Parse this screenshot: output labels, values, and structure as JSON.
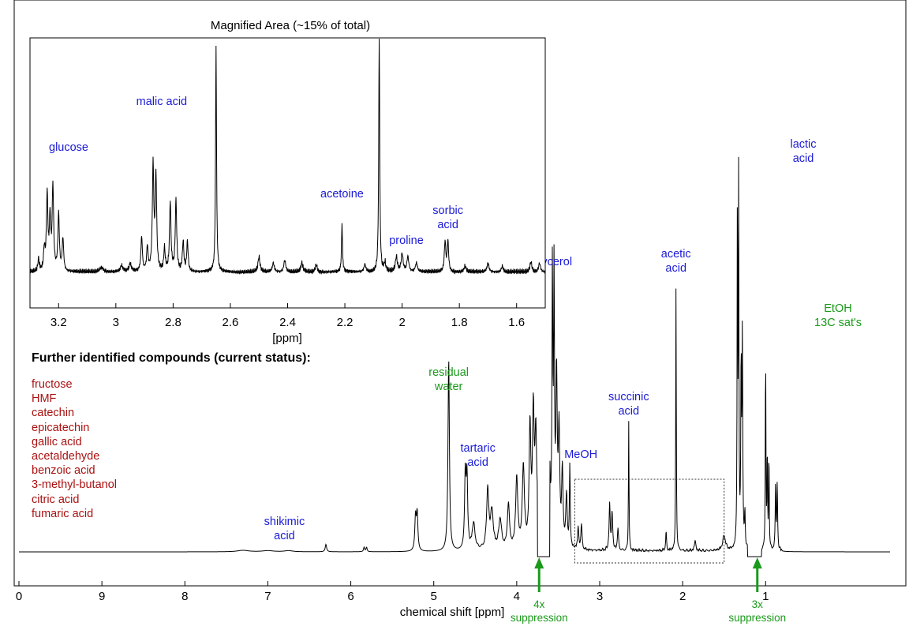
{
  "chart_data": [
    {
      "type": "line",
      "subtype": "nmr-spectrum",
      "xlabel": "chemical shift [ppm]",
      "ylabel": "",
      "xlim": [
        10.0,
        -0.5
      ],
      "x_reversed": true,
      "x_ticks": [
        "0",
        "9",
        "8",
        "7",
        "6",
        "5",
        "4",
        "3",
        "2",
        "1"
      ],
      "grid": false,
      "peaks": [
        {
          "ppm": 7.3,
          "height": 0.004,
          "width": 0.08
        },
        {
          "ppm": 7.0,
          "height": 0.003,
          "width": 0.08
        },
        {
          "ppm": 6.75,
          "height": 0.003,
          "width": 0.06
        },
        {
          "ppm": 6.3,
          "height": 0.02,
          "width": 0.01
        },
        {
          "ppm": 5.84,
          "height": 0.012,
          "width": 0.008
        },
        {
          "ppm": 5.81,
          "height": 0.012,
          "width": 0.008
        },
        {
          "ppm": 5.2,
          "height": 0.1,
          "width": 0.01
        },
        {
          "ppm": 5.22,
          "height": 0.09,
          "width": 0.01
        },
        {
          "ppm": 4.82,
          "height": 0.52,
          "width": 0.01
        },
        {
          "ppm": 4.62,
          "height": 0.2,
          "width": 0.01
        },
        {
          "ppm": 4.6,
          "height": 0.19,
          "width": 0.01
        },
        {
          "ppm": 4.52,
          "height": 0.07,
          "width": 0.02
        },
        {
          "ppm": 4.35,
          "height": 0.16,
          "width": 0.015
        },
        {
          "ppm": 4.3,
          "height": 0.1,
          "width": 0.02
        },
        {
          "ppm": 4.2,
          "height": 0.08,
          "width": 0.02
        },
        {
          "ppm": 4.1,
          "height": 0.12,
          "width": 0.015
        },
        {
          "ppm": 4.0,
          "height": 0.19,
          "width": 0.015
        },
        {
          "ppm": 3.92,
          "height": 0.22,
          "width": 0.015
        },
        {
          "ppm": 3.84,
          "height": 0.32,
          "width": 0.012
        },
        {
          "ppm": 3.8,
          "height": 0.35,
          "width": 0.012
        },
        {
          "ppm": 3.77,
          "height": 0.28,
          "width": 0.012
        },
        {
          "ppm": 3.73,
          "height": 0.53,
          "width": 0.008
        },
        {
          "ppm": 3.61,
          "height": 0.34,
          "width": 0.012
        },
        {
          "ppm": 3.57,
          "height": 0.72,
          "width": 0.006
        },
        {
          "ppm": 3.55,
          "height": 0.7,
          "width": 0.006
        },
        {
          "ppm": 3.52,
          "height": 0.45,
          "width": 0.01
        },
        {
          "ppm": 3.49,
          "height": 0.3,
          "width": 0.01
        },
        {
          "ppm": 3.45,
          "height": 0.2,
          "width": 0.01
        },
        {
          "ppm": 3.4,
          "height": 0.14,
          "width": 0.01
        },
        {
          "ppm": 3.36,
          "height": 0.22,
          "width": 0.006
        },
        {
          "ppm": 3.26,
          "height": 0.06,
          "width": 0.008
        },
        {
          "ppm": 3.22,
          "height": 0.07,
          "width": 0.008
        },
        {
          "ppm": 2.88,
          "height": 0.12,
          "width": 0.008
        },
        {
          "ppm": 2.85,
          "height": 0.1,
          "width": 0.008
        },
        {
          "ppm": 2.78,
          "height": 0.06,
          "width": 0.008
        },
        {
          "ppm": 2.65,
          "height": 0.35,
          "width": 0.004
        },
        {
          "ppm": 2.2,
          "height": 0.05,
          "width": 0.006
        },
        {
          "ppm": 2.08,
          "height": 0.72,
          "width": 0.004
        },
        {
          "ppm": 1.85,
          "height": 0.03,
          "width": 0.008
        },
        {
          "ppm": 1.5,
          "height": 0.04,
          "width": 0.02
        },
        {
          "ppm": 1.34,
          "height": 0.99,
          "width": 0.004
        },
        {
          "ppm": 1.325,
          "height": 0.98,
          "width": 0.004
        },
        {
          "ppm": 1.295,
          "height": 0.5,
          "width": 0.005
        },
        {
          "ppm": 1.28,
          "height": 0.57,
          "width": 0.005
        },
        {
          "ppm": 1.25,
          "height": 0.1,
          "width": 0.005
        },
        {
          "ppm": 1.0,
          "height": 0.55,
          "width": 0.004
        },
        {
          "ppm": 0.98,
          "height": 0.27,
          "width": 0.004
        },
        {
          "ppm": 0.96,
          "height": 0.27,
          "width": 0.004
        },
        {
          "ppm": 0.88,
          "height": 0.18,
          "width": 0.005
        },
        {
          "ppm": 0.86,
          "height": 0.18,
          "width": 0.005
        }
      ],
      "suppressed_regions": [
        [
          3.75,
          3.6
        ],
        [
          1.22,
          1.05
        ]
      ],
      "annotations": [
        {
          "text": "shikimic\nacid",
          "ppm": 6.8,
          "color": "#1a1ad6"
        },
        {
          "text": "residual\nwater",
          "ppm": 4.82,
          "color": "#1a9a1a"
        },
        {
          "text": "tartaric\nacid",
          "ppm": 4.62,
          "color": "#1a1ad6"
        },
        {
          "text": "glycerol",
          "ppm": 3.57,
          "color": "#1a1ad6"
        },
        {
          "text": "MeOH",
          "ppm": 3.36,
          "color": "#1a1ad6"
        },
        {
          "text": "succinic\nacid",
          "ppm": 2.65,
          "color": "#1a1ad6"
        },
        {
          "text": "acetic\nacid",
          "ppm": 2.08,
          "color": "#1a1ad6"
        },
        {
          "text": "lactic\nacid",
          "ppm": 1.32,
          "color": "#1a1ad6"
        },
        {
          "text": "EtOH\n13C sat's",
          "ppm": 1.02,
          "color": "#1a9a1a"
        }
      ],
      "suppression_markers": [
        {
          "label": "4x\nsuppression",
          "ppm": 3.73,
          "color": "#1a9a1a"
        },
        {
          "label": "3x\nsuppression",
          "ppm": 1.1,
          "color": "#1a9a1a"
        }
      ],
      "magnified_region": [
        3.3,
        1.5
      ]
    },
    {
      "type": "line",
      "subtype": "nmr-spectrum-inset",
      "title": "Magnified Area (~15% of total)",
      "xlabel": "[ppm]",
      "xlim": [
        3.3,
        1.5
      ],
      "x_reversed": true,
      "x_ticks": [
        "3.2",
        "3",
        "2.8",
        "2.6",
        "2.4",
        "2.2",
        "2",
        "1.8",
        "1.6"
      ],
      "peaks": [
        {
          "ppm": 3.27,
          "height": 0.08,
          "width": 0.003
        },
        {
          "ppm": 3.25,
          "height": 0.14,
          "width": 0.003
        },
        {
          "ppm": 3.24,
          "height": 0.5,
          "width": 0.003
        },
        {
          "ppm": 3.23,
          "height": 0.33,
          "width": 0.003
        },
        {
          "ppm": 3.22,
          "height": 0.56,
          "width": 0.003
        },
        {
          "ppm": 3.2,
          "height": 0.38,
          "width": 0.003
        },
        {
          "ppm": 3.185,
          "height": 0.22,
          "width": 0.003
        },
        {
          "ppm": 3.05,
          "height": 0.03,
          "width": 0.008
        },
        {
          "ppm": 2.98,
          "height": 0.04,
          "width": 0.005
        },
        {
          "ppm": 2.95,
          "height": 0.05,
          "width": 0.005
        },
        {
          "ppm": 2.91,
          "height": 0.23,
          "width": 0.003
        },
        {
          "ppm": 2.89,
          "height": 0.16,
          "width": 0.003
        },
        {
          "ppm": 2.87,
          "height": 0.7,
          "width": 0.003
        },
        {
          "ppm": 2.86,
          "height": 0.63,
          "width": 0.003
        },
        {
          "ppm": 2.83,
          "height": 0.15,
          "width": 0.003
        },
        {
          "ppm": 2.81,
          "height": 0.46,
          "width": 0.003
        },
        {
          "ppm": 2.79,
          "height": 0.47,
          "width": 0.003
        },
        {
          "ppm": 2.765,
          "height": 0.2,
          "width": 0.003
        },
        {
          "ppm": 2.75,
          "height": 0.2,
          "width": 0.003
        },
        {
          "ppm": 2.65,
          "height": 1.5,
          "width": 0.002
        },
        {
          "ppm": 2.5,
          "height": 0.1,
          "width": 0.004
        },
        {
          "ppm": 2.45,
          "height": 0.06,
          "width": 0.004
        },
        {
          "ppm": 2.41,
          "height": 0.08,
          "width": 0.004
        },
        {
          "ppm": 2.35,
          "height": 0.06,
          "width": 0.004
        },
        {
          "ppm": 2.3,
          "height": 0.05,
          "width": 0.004
        },
        {
          "ppm": 2.21,
          "height": 0.32,
          "width": 0.002
        },
        {
          "ppm": 2.13,
          "height": 0.05,
          "width": 0.004
        },
        {
          "ppm": 2.08,
          "height": 1.6,
          "width": 0.002
        },
        {
          "ppm": 2.06,
          "height": 0.06,
          "width": 0.003
        },
        {
          "ppm": 2.02,
          "height": 0.1,
          "width": 0.004
        },
        {
          "ppm": 2.0,
          "height": 0.12,
          "width": 0.004
        },
        {
          "ppm": 1.98,
          "height": 0.1,
          "width": 0.004
        },
        {
          "ppm": 1.95,
          "height": 0.06,
          "width": 0.004
        },
        {
          "ppm": 1.85,
          "height": 0.2,
          "width": 0.003
        },
        {
          "ppm": 1.84,
          "height": 0.2,
          "width": 0.003
        },
        {
          "ppm": 1.78,
          "height": 0.04,
          "width": 0.004
        },
        {
          "ppm": 1.7,
          "height": 0.06,
          "width": 0.004
        },
        {
          "ppm": 1.65,
          "height": 0.04,
          "width": 0.004
        },
        {
          "ppm": 1.55,
          "height": 0.07,
          "width": 0.004
        },
        {
          "ppm": 1.52,
          "height": 0.06,
          "width": 0.004
        }
      ],
      "annotations": [
        {
          "text": "glucose",
          "ppm": 3.22,
          "color": "#1a1ad6"
        },
        {
          "text": "malic acid",
          "ppm": 2.84,
          "color": "#1a1ad6"
        },
        {
          "text": "acetoine",
          "ppm": 2.21,
          "color": "#1a1ad6"
        },
        {
          "text": "proline",
          "ppm": 1.99,
          "color": "#1a1ad6"
        },
        {
          "text": "sorbic\nacid",
          "ppm": 1.84,
          "color": "#1a1ad6"
        }
      ]
    }
  ],
  "further_compounds": {
    "title": "Further identified compounds (current status):",
    "color": "#aa1111",
    "items": [
      "fructose",
      "HMF",
      "catechin",
      "epicatechin",
      "gallic acid",
      "acetaldehyde",
      "benzoic acid",
      "3-methyl-butanol",
      "citric acid",
      "fumaric acid"
    ]
  }
}
